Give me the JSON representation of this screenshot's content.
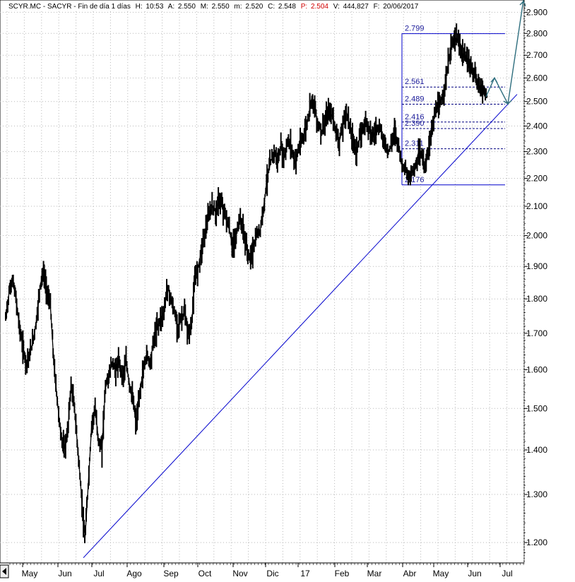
{
  "header": {
    "ticker": "SCYR.MC - SACYR - Fin de día 1 días",
    "high_label": "H:",
    "high": "10:53",
    "ask_label": "A:",
    "ask": "2.550",
    "max_label": "M:",
    "max": "2.550",
    "min_label": "m:",
    "min": "2.520",
    "close_label": "C:",
    "close": "2.548",
    "price_label": "P:",
    "price": "2.504",
    "volume_label": "V:",
    "volume": "444,827",
    "date_label": "F:",
    "date": "20/06/2017"
  },
  "chart_data": {
    "type": "line",
    "title": "",
    "xlabel": "",
    "ylabel": "",
    "log_scale": true,
    "grid": true,
    "ylim": [
      1.16,
      2.96
    ],
    "y_ticks": [
      "1.200",
      "1.300",
      "1.400",
      "1.500",
      "1.600",
      "1.700",
      "1.800",
      "1.900",
      "2.000",
      "2.100",
      "2.200",
      "2.300",
      "2.400",
      "2.500",
      "2.600",
      "2.700",
      "2.800",
      "2.900"
    ],
    "x_ticks": [
      "May",
      "Jun",
      "Jul",
      "Ago",
      "Sep",
      "Oct",
      "Nov",
      "Dic",
      "17",
      "Feb",
      "Mar",
      "Abr",
      "May",
      "Jun",
      "Jul"
    ],
    "series": [
      {
        "values": [
          1.74,
          1.82,
          1.86,
          1.8,
          1.72,
          1.66,
          1.62,
          1.64,
          1.68,
          1.74,
          1.84,
          1.88,
          1.82,
          1.78,
          1.62,
          1.52,
          1.44,
          1.4,
          1.44,
          1.56,
          1.5,
          1.4,
          1.3,
          1.2,
          1.32,
          1.46,
          1.5,
          1.42,
          1.4,
          1.56,
          1.58,
          1.62,
          1.6,
          1.62,
          1.58,
          1.62,
          1.56,
          1.52,
          1.46,
          1.54,
          1.6,
          1.64,
          1.62,
          1.68,
          1.72,
          1.74,
          1.76,
          1.84,
          1.8,
          1.76,
          1.72,
          1.74,
          1.76,
          1.7,
          1.72,
          1.86,
          1.9,
          1.96,
          2.02,
          2.06,
          2.1,
          2.08,
          2.12,
          2.1,
          2.06,
          2.02,
          1.96,
          2.0,
          2.06,
          2.02,
          1.96,
          1.92,
          1.96,
          2.0,
          2.02,
          2.1,
          2.2,
          2.26,
          2.3,
          2.26,
          2.32,
          2.28,
          2.34,
          2.32,
          2.26,
          2.3,
          2.34,
          2.38,
          2.44,
          2.52,
          2.46,
          2.4,
          2.38,
          2.42,
          2.46,
          2.44,
          2.38,
          2.34,
          2.4,
          2.46,
          2.4,
          2.34,
          2.3,
          2.36,
          2.4,
          2.42,
          2.38,
          2.36,
          2.4,
          2.38,
          2.34,
          2.3,
          2.32,
          2.38,
          2.34,
          2.26,
          2.24,
          2.2,
          2.22,
          2.24,
          2.3,
          2.28,
          2.24,
          2.32,
          2.4,
          2.46,
          2.48,
          2.52,
          2.6,
          2.7,
          2.76,
          2.78,
          2.74,
          2.7,
          2.68,
          2.66,
          2.62,
          2.58,
          2.56,
          2.55,
          2.52
        ]
      }
    ],
    "levels": [
      2.799,
      2.561,
      2.489,
      2.416,
      2.39,
      2.311,
      2.176
    ],
    "level_labels": [
      "2.799",
      "2.561",
      "2.489",
      "2.416",
      "2.390",
      "2.311",
      "2.176"
    ],
    "trendline": {
      "from_date": "Jul",
      "from": 1.17,
      "to_date": "Jun",
      "to": 2.53
    },
    "projection": [
      2.52,
      2.6,
      2.49,
      2.96
    ],
    "colors": {
      "line": "#000000",
      "trend": "#0000cc",
      "levels": "#000080",
      "projection": "#2e6e7e",
      "grid": "#b8b8b8",
      "axis": "#000000",
      "level_text": "#1a1a99"
    }
  }
}
